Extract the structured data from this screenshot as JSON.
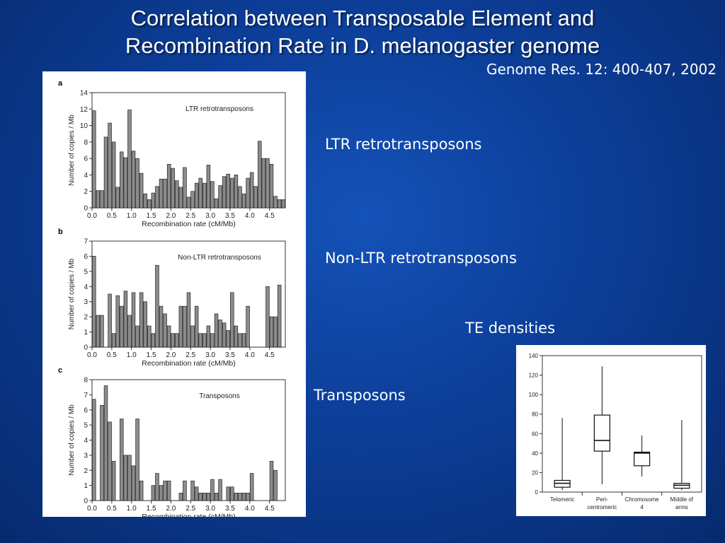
{
  "slide": {
    "title_line1": "Correlation between Transposable Element and",
    "title_line2": "Recombination Rate in D. melanogaster genome",
    "citation": "Genome Res. 12: 400-407, 2002",
    "labels": {
      "ltr": "LTR retrotransposons",
      "nonltr": "Non-LTR retrotransposons",
      "transposons": "Transposons",
      "te_densities": "TE densities"
    }
  },
  "chart_data": [
    {
      "type": "bar",
      "panel": "a",
      "title": "LTR retrotransposons",
      "xlabel": "Recombination rate (cM/Mb)",
      "ylabel": "Number of copies / Mb",
      "ylim": [
        0,
        14
      ],
      "xlim": [
        0.0,
        4.9
      ],
      "yticks": [
        0,
        2,
        4,
        6,
        8,
        10,
        12,
        14
      ],
      "xticks": [
        "0.0",
        "0.5",
        "1.0",
        "1.5",
        "2.0",
        "2.5",
        "3.0",
        "3.5",
        "4.0",
        "4.5"
      ],
      "bin_width": 0.1,
      "values": [
        11.8,
        2.1,
        2.1,
        8.6,
        10.3,
        8.0,
        2.5,
        6.8,
        6.1,
        11.9,
        6.9,
        6.0,
        4.2,
        1.7,
        1.0,
        1.8,
        2.6,
        3.5,
        3.5,
        5.3,
        4.8,
        3.3,
        2.5,
        4.9,
        1.3,
        2.0,
        3.0,
        3.6,
        3.0,
        5.2,
        3.2,
        1.1,
        2.7,
        3.8,
        4.1,
        3.6,
        4.0,
        2.6,
        1.7,
        3.6,
        4.3,
        2.6,
        8.1,
        6.0,
        6.0,
        5.3,
        1.4,
        1.0,
        1.0
      ],
      "grid": false
    },
    {
      "type": "bar",
      "panel": "b",
      "title": "Non-LTR retrotransposons",
      "xlabel": "Recombination rate (cM/Mb)",
      "ylabel": "Number of copies / Mb",
      "ylim": [
        0,
        7
      ],
      "xlim": [
        0.0,
        4.9
      ],
      "yticks": [
        0,
        1,
        2,
        3,
        4,
        5,
        6,
        7
      ],
      "xticks": [
        "0.0",
        "0.5",
        "1.0",
        "1.5",
        "2.0",
        "2.5",
        "3.0",
        "3.5",
        "4.0",
        "4.5"
      ],
      "bin_width": 0.1,
      "values": [
        6.0,
        2.1,
        2.1,
        0,
        3.5,
        0.9,
        3.4,
        2.7,
        3.7,
        2.1,
        3.6,
        1.4,
        3.6,
        3.0,
        1.4,
        0.9,
        5.4,
        2.7,
        2.2,
        1.4,
        0.9,
        0.9,
        2.7,
        2.7,
        3.6,
        1.4,
        2.7,
        0.9,
        0.9,
        1.4,
        0.9,
        2.2,
        1.8,
        1.6,
        1.1,
        3.6,
        1.4,
        0.9,
        0.9,
        2.7,
        0,
        0,
        0,
        0,
        4.0,
        2.0,
        2.0,
        4.1,
        0
      ],
      "grid": false
    },
    {
      "type": "bar",
      "panel": "c",
      "title": "Transposons",
      "xlabel": "Recombination rate (cM/Mb)",
      "ylabel": "Number of copies / Mb",
      "ylim": [
        0,
        8
      ],
      "xlim": [
        0.0,
        4.9
      ],
      "yticks": [
        0,
        1,
        2,
        3,
        4,
        5,
        6,
        7,
        8
      ],
      "xticks": [
        "0.0",
        "0.5",
        "1.0",
        "1.5",
        "2.0",
        "2.5",
        "3.0",
        "3.5",
        "4.0",
        "4.5"
      ],
      "bin_width": 0.1,
      "values": [
        6.7,
        0,
        6.3,
        7.6,
        5.2,
        2.6,
        0,
        5.4,
        3.0,
        3.0,
        2.3,
        5.4,
        1.3,
        0,
        0,
        1.0,
        1.8,
        1.0,
        1.3,
        1.3,
        0,
        0,
        0.5,
        1.3,
        0,
        1.3,
        0.9,
        0.5,
        0.5,
        0.5,
        1.4,
        0.5,
        1.4,
        0,
        0.9,
        0.9,
        0.5,
        0.5,
        0.5,
        0.5,
        1.8,
        0,
        0,
        0,
        0,
        2.6,
        2.0,
        0,
        0
      ],
      "grid": false
    },
    {
      "type": "box",
      "panel": "te-densities",
      "ylim": [
        0,
        140
      ],
      "yticks": [
        0,
        20,
        40,
        60,
        80,
        100,
        120,
        140
      ],
      "categories": [
        {
          "label_lines": [
            "Telomeric"
          ],
          "min": 2,
          "q1": 5,
          "median": 9,
          "q3": 12,
          "max": 76
        },
        {
          "label_lines": [
            "Peri-",
            "centromeric"
          ],
          "min": 8,
          "q1": 42,
          "median": 53,
          "q3": 79,
          "max": 129
        },
        {
          "label_lines": [
            "Chromosome",
            "4"
          ],
          "min": 16,
          "q1": 27,
          "median": 40,
          "q3": 41,
          "max": 58
        },
        {
          "label_lines": [
            "Middle of",
            "arms"
          ],
          "min": 2,
          "q1": 4,
          "median": 7,
          "q3": 9,
          "max": 74
        }
      ]
    }
  ]
}
